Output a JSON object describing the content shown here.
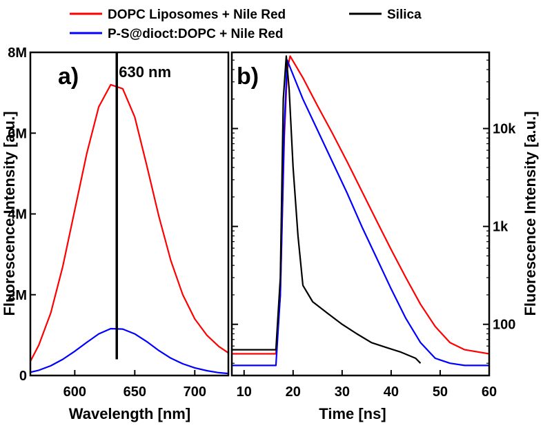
{
  "legend": [
    {
      "label": "DOPC Liposomes + Nile Red",
      "color": "#ff0000"
    },
    {
      "label": "Silica",
      "color": "#000000"
    },
    {
      "label": "P-S@dioct:DOPC + Nile Red",
      "color": "#0000ff"
    }
  ],
  "chart_data": [
    {
      "type": "line",
      "panel_label": "a)",
      "xlabel": "Wavelength [nm]",
      "ylabel": "Fluorescence Intensity [a.u.]",
      "xlim": [
        563,
        728
      ],
      "ylim": [
        0,
        8000000
      ],
      "x_ticks": [
        600,
        650,
        700
      ],
      "y_ticks": [
        0,
        2000000,
        4000000,
        6000000,
        8000000
      ],
      "y_tick_labels": [
        "0",
        "2M",
        "4M",
        "6M",
        "8M"
      ],
      "annotation": {
        "text": "630 nm",
        "x": 635,
        "y_range": [
          400000,
          8000000
        ]
      },
      "series": [
        {
          "name": "DOPC Liposomes + Nile Red",
          "color": "#ff0000",
          "x": [
            563,
            570,
            580,
            590,
            600,
            610,
            620,
            630,
            640,
            650,
            660,
            670,
            680,
            690,
            700,
            710,
            720,
            728
          ],
          "y": [
            350000,
            750000,
            1550000,
            2700000,
            4100000,
            5500000,
            6650000,
            7200000,
            7100000,
            6400000,
            5200000,
            3950000,
            2850000,
            2000000,
            1400000,
            1000000,
            720000,
            560000
          ]
        },
        {
          "name": "P-S@dioct:DOPC + Nile Red",
          "color": "#0000ff",
          "x": [
            563,
            570,
            580,
            590,
            600,
            610,
            620,
            630,
            640,
            650,
            660,
            670,
            680,
            690,
            700,
            710,
            720,
            728
          ],
          "y": [
            80000,
            130000,
            240000,
            400000,
            600000,
            820000,
            1030000,
            1160000,
            1150000,
            1030000,
            840000,
            620000,
            430000,
            290000,
            190000,
            120000,
            70000,
            50000
          ]
        }
      ]
    },
    {
      "type": "line",
      "panel_label": "b)",
      "xlabel": "Time [ns]",
      "ylabel": "Fluorescence Intensity [a.u.]",
      "xlim": [
        7.5,
        60
      ],
      "y_scale": "log",
      "ylim": [
        30,
        60000
      ],
      "x_ticks": [
        10,
        20,
        30,
        40,
        50,
        60
      ],
      "y_ticks": [
        100,
        1000,
        10000
      ],
      "y_tick_labels": [
        "100",
        "1k",
        "10k"
      ],
      "series": [
        {
          "name": "DOPC Liposomes + Nile Red",
          "color": "#ff0000",
          "x": [
            7.5,
            12,
            16.5,
            17.4,
            18.2,
            18.8,
            19.4,
            22,
            25,
            28,
            31,
            34,
            37,
            40,
            43,
            46,
            49,
            52,
            55,
            60
          ],
          "y": [
            50,
            50,
            50,
            200,
            8000,
            40000,
            55000,
            33000,
            17000,
            9000,
            4600,
            2300,
            1150,
            580,
            300,
            160,
            95,
            65,
            55,
            50
          ]
        },
        {
          "name": "P-S@dioct:DOPC + Nile Red",
          "color": "#0000ff",
          "x": [
            7.5,
            12,
            16.5,
            17.4,
            18.2,
            18.8,
            19.4,
            22,
            25,
            28,
            31,
            34,
            37,
            40,
            43,
            46,
            49,
            52,
            55,
            60
          ],
          "y": [
            38,
            38,
            38,
            200,
            10000,
            50000,
            42000,
            20000,
            9600,
            4600,
            2200,
            1000,
            480,
            230,
            115,
            65,
            45,
            40,
            38,
            38
          ]
        },
        {
          "name": "Silica",
          "color": "#000000",
          "x": [
            7.5,
            12,
            16.5,
            17.4,
            18,
            18.6,
            19.2,
            20,
            21,
            22,
            24,
            27,
            30,
            33,
            36,
            39,
            42,
            45,
            46
          ],
          "y": [
            55,
            55,
            55,
            300,
            20000,
            55000,
            25000,
            4000,
            800,
            250,
            170,
            130,
            100,
            80,
            65,
            58,
            52,
            45,
            40
          ]
        }
      ]
    }
  ]
}
